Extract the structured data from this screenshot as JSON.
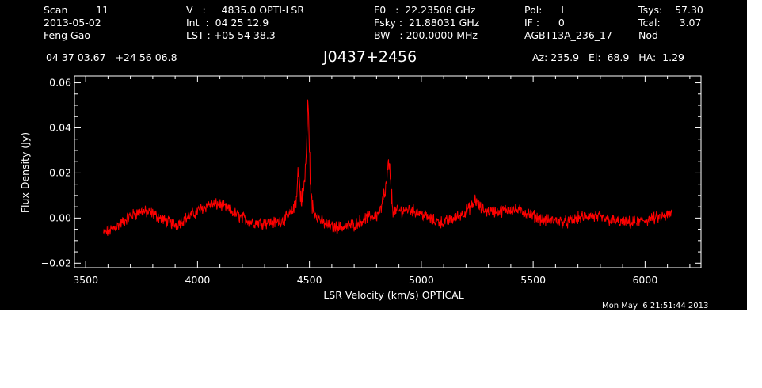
{
  "header": {
    "col1": [
      "Scan         11",
      "2013-05-02",
      "Feng Gao"
    ],
    "col2": [
      "V   :     4835.0 OPTI-LSR",
      "Int  :  04 25 12.9",
      "LST : +05 54 38.3"
    ],
    "col3": [
      "F0   :  22.23508 GHz",
      "Fsky :  21.88031 GHz",
      "BW   : 200.0000 MHz"
    ],
    "col4": [
      "Pol:      I",
      "IF :      0",
      "AGBT13A_236_17"
    ],
    "col5": [
      "Tsys:    57.30",
      "Tcal:      3.07",
      "Nod"
    ],
    "coords": "04 37 03.67   +24 56 06.8",
    "source": "J0437+2456",
    "az_el_ha": "Az: 235.9   El:  68.9   HA:  1.29",
    "timestamp": "Mon May  6 21:51:44 2013"
  },
  "colors": {
    "background": "#000000",
    "series": "#ff0000",
    "axes": "#ffffff"
  },
  "chart_data": {
    "type": "line",
    "title": "J0437+2456",
    "xlabel": "LSR Velocity (km/s) OPTICAL",
    "ylabel": "Flux Density (Jy)",
    "xlim": [
      3450,
      6250
    ],
    "ylim": [
      -0.022,
      0.063
    ],
    "xticks": [
      3500,
      4000,
      4500,
      5000,
      5500,
      6000
    ],
    "xtick_labels": [
      "3500",
      "4000",
      "4500",
      "5000",
      "5500",
      "6000"
    ],
    "yticks": [
      -0.02,
      0.0,
      0.02,
      0.04,
      0.06
    ],
    "ytick_labels": [
      "−0.02",
      "0.00",
      "0.02",
      "0.04",
      "0.06"
    ],
    "grid": false,
    "series": [
      {
        "x": [
          3580,
          3600,
          3650,
          3700,
          3750,
          3800,
          3850,
          3900,
          3950,
          4000,
          4050,
          4100,
          4150,
          4200,
          4250,
          4300,
          4350,
          4400,
          4430,
          4445,
          4450,
          4460,
          4470,
          4480,
          4488,
          4493,
          4498,
          4505,
          4512,
          4520,
          4535,
          4560,
          4600,
          4650,
          4700,
          4750,
          4800,
          4820,
          4830,
          4840,
          4848,
          4855,
          4862,
          4870,
          4880,
          4900,
          4950,
          5000,
          5050,
          5100,
          5150,
          5200,
          5235,
          5240,
          5250,
          5270,
          5300,
          5350,
          5400,
          5450,
          5500,
          5550,
          5600,
          5650,
          5700,
          5750,
          5800,
          5850,
          5900,
          5950,
          6000,
          6050,
          6100,
          6120
        ],
        "y": [
          -0.007,
          -0.006,
          -0.003,
          0.001,
          0.003,
          0.002,
          -0.001,
          -0.003,
          0.0,
          0.003,
          0.006,
          0.006,
          0.003,
          0.0,
          -0.002,
          -0.002,
          -0.002,
          0.0,
          0.004,
          0.012,
          0.022,
          0.01,
          0.008,
          0.018,
          0.033,
          0.051,
          0.04,
          0.013,
          0.005,
          0.003,
          0.001,
          -0.002,
          -0.004,
          -0.004,
          -0.003,
          0.0,
          0.001,
          0.004,
          0.008,
          0.012,
          0.018,
          0.025,
          0.016,
          0.006,
          0.003,
          0.003,
          0.004,
          0.002,
          -0.001,
          -0.002,
          0.0,
          0.003,
          0.006,
          0.009,
          0.006,
          0.004,
          0.003,
          0.003,
          0.004,
          0.003,
          0.001,
          -0.001,
          -0.001,
          -0.002,
          0.0,
          0.001,
          0.0,
          -0.001,
          -0.002,
          -0.002,
          -0.001,
          0.0,
          0.001,
          0.002
        ]
      }
    ]
  }
}
